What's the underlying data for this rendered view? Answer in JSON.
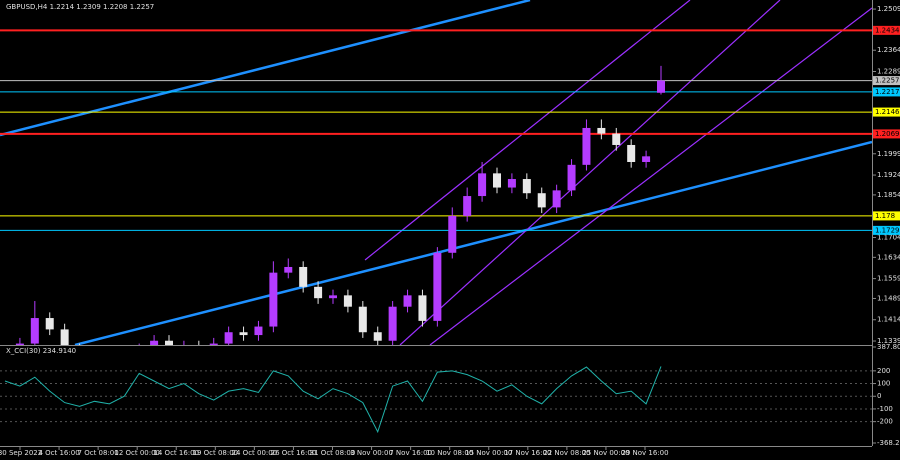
{
  "chart_data": {
    "type": "candlestick",
    "title": "GBPUSD,H4  1.2214 1.2309 1.2208 1.2257",
    "categories": [
      "30 Sep 2022",
      "4 Oct 16:00",
      "7 Oct 08:00",
      "12 Oct 00:00",
      "14 Oct 16:00",
      "19 Oct 08:00",
      "24 Oct 00:00",
      "26 Oct 16:00",
      "31 Oct 08:00",
      "3 Nov 00:00",
      "7 Nov 16:00",
      "10 Nov 08:00",
      "15 Nov 00:00",
      "17 Nov 16:00",
      "22 Nov 08:00",
      "25 Nov 00:00",
      "29 Nov 16:00"
    ],
    "open": [
      1.128,
      1.13,
      1.133,
      1.142,
      1.138,
      1.131,
      1.128,
      1.126,
      1.129,
      1.127,
      1.131,
      1.134,
      1.129,
      1.132,
      1.13,
      1.133,
      1.137,
      1.136,
      1.139,
      1.158,
      1.16,
      1.153,
      1.149,
      1.15,
      1.146,
      1.137,
      1.134,
      1.146,
      1.15,
      1.141,
      1.165,
      1.178,
      1.185,
      1.193,
      1.188,
      1.191,
      1.186,
      1.181,
      1.187,
      1.196,
      1.209,
      1.207,
      1.203,
      1.197,
      1.2214
    ],
    "high": [
      1.132,
      1.135,
      1.148,
      1.144,
      1.14,
      1.133,
      1.13,
      1.131,
      1.131,
      1.133,
      1.136,
      1.136,
      1.134,
      1.134,
      1.135,
      1.139,
      1.139,
      1.141,
      1.162,
      1.163,
      1.162,
      1.155,
      1.152,
      1.152,
      1.148,
      1.139,
      1.148,
      1.152,
      1.152,
      1.167,
      1.181,
      1.188,
      1.197,
      1.195,
      1.193,
      1.193,
      1.188,
      1.189,
      1.198,
      1.212,
      1.212,
      1.209,
      1.205,
      1.201,
      1.2309
    ],
    "low": [
      1.126,
      1.128,
      1.131,
      1.136,
      1.129,
      1.126,
      1.124,
      1.124,
      1.125,
      1.125,
      1.129,
      1.127,
      1.127,
      1.128,
      1.128,
      1.131,
      1.134,
      1.134,
      1.137,
      1.156,
      1.151,
      1.147,
      1.147,
      1.144,
      1.135,
      1.132,
      1.132,
      1.144,
      1.139,
      1.139,
      1.163,
      1.176,
      1.183,
      1.186,
      1.186,
      1.184,
      1.179,
      1.179,
      1.185,
      1.194,
      1.205,
      1.201,
      1.195,
      1.195,
      1.2208
    ],
    "close": [
      1.13,
      1.133,
      1.142,
      1.138,
      1.131,
      1.128,
      1.126,
      1.129,
      1.127,
      1.131,
      1.134,
      1.129,
      1.132,
      1.13,
      1.133,
      1.137,
      1.136,
      1.139,
      1.158,
      1.16,
      1.153,
      1.149,
      1.15,
      1.146,
      1.137,
      1.134,
      1.146,
      1.15,
      1.141,
      1.165,
      1.178,
      1.185,
      1.193,
      1.188,
      1.191,
      1.186,
      1.181,
      1.187,
      1.196,
      1.209,
      1.207,
      1.203,
      1.197,
      1.199,
      1.2257
    ],
    "up_color": "#b43cff",
    "down_color": "#e8e8e8",
    "ylim": [
      1.1325,
      1.2541
    ],
    "yticks": [
      1.2509,
      1.2434,
      1.2364,
      1.2289,
      1.2217,
      1.2146,
      1.2069,
      1.1999,
      1.1924,
      1.1854,
      1.178,
      1.1704,
      1.1634,
      1.1559,
      1.1489,
      1.1414,
      1.1339
    ],
    "levels": [
      {
        "value": 1.2434,
        "color": "#ff2020"
      },
      {
        "value": 1.2257,
        "color": "#c0c0c0"
      },
      {
        "value": 1.2217,
        "color": "#00c8ff"
      },
      {
        "value": 1.2146,
        "color": "#ffff00"
      },
      {
        "value": 1.2069,
        "color": "#ff2020"
      },
      {
        "value": 1.178,
        "color": "#ffff00"
      },
      {
        "value": 1.1729,
        "color": "#00c8ff"
      }
    ],
    "indicator": {
      "title": "X_CCI(30) 234.9140",
      "color": "#20b2aa",
      "values": [
        120,
        80,
        150,
        40,
        -50,
        -80,
        -40,
        -60,
        0,
        180,
        120,
        60,
        100,
        20,
        -30,
        40,
        60,
        30,
        200,
        160,
        40,
        -20,
        60,
        20,
        -50,
        -280,
        80,
        120,
        -40,
        190,
        200,
        170,
        120,
        40,
        90,
        0,
        -60,
        60,
        160,
        230,
        120,
        20,
        40,
        -60,
        234.914
      ],
      "ylim": [
        -368.2178,
        387.8035
      ],
      "yticks": [
        387.8035,
        200,
        100,
        0,
        -100,
        -200,
        -368.2178
      ]
    }
  }
}
